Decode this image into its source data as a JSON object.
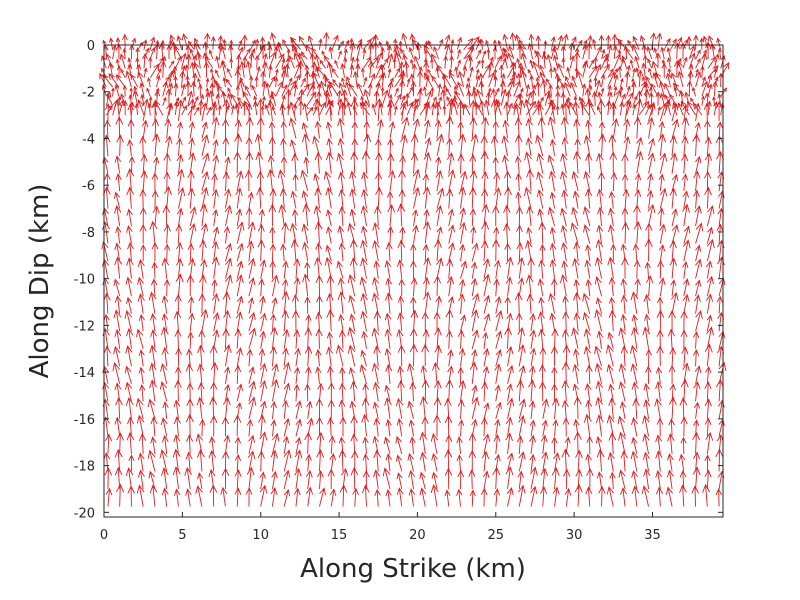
{
  "chart_data": {
    "type": "quiver",
    "title": "",
    "xlabel": "Along Strike (km)",
    "ylabel": "Along Dip (km)",
    "xlim": [
      0,
      39.5
    ],
    "ylim": [
      -20.2,
      0
    ],
    "xticks": [
      0,
      5,
      10,
      15,
      20,
      25,
      30,
      35
    ],
    "yticks": [
      0,
      -2,
      -4,
      -6,
      -8,
      -10,
      -12,
      -14,
      -16,
      -18,
      -20
    ],
    "xtick_labels": [
      "0",
      "5",
      "10",
      "15",
      "20",
      "25",
      "30",
      "35"
    ],
    "ytick_labels": [
      "0",
      "-2",
      "-4",
      "-6",
      "-8",
      "-10",
      "-12",
      "-14",
      "-16",
      "-18",
      "-20"
    ],
    "grid": false,
    "legend": "none",
    "arrow_color": "#e31a1c",
    "axis_color": "#262626",
    "field": {
      "shallow_zone_depth_km": [
        0,
        -3
      ],
      "shallow_arrow_spacing_km": 0.4,
      "deep_arrow_spacing_strike_km": 0.75,
      "deep_arrow_spacing_dip_km": 0.75,
      "dominant_direction": "up-dip",
      "shallow_direction": "mixed, mostly up-dip with oscillating strike component"
    }
  }
}
